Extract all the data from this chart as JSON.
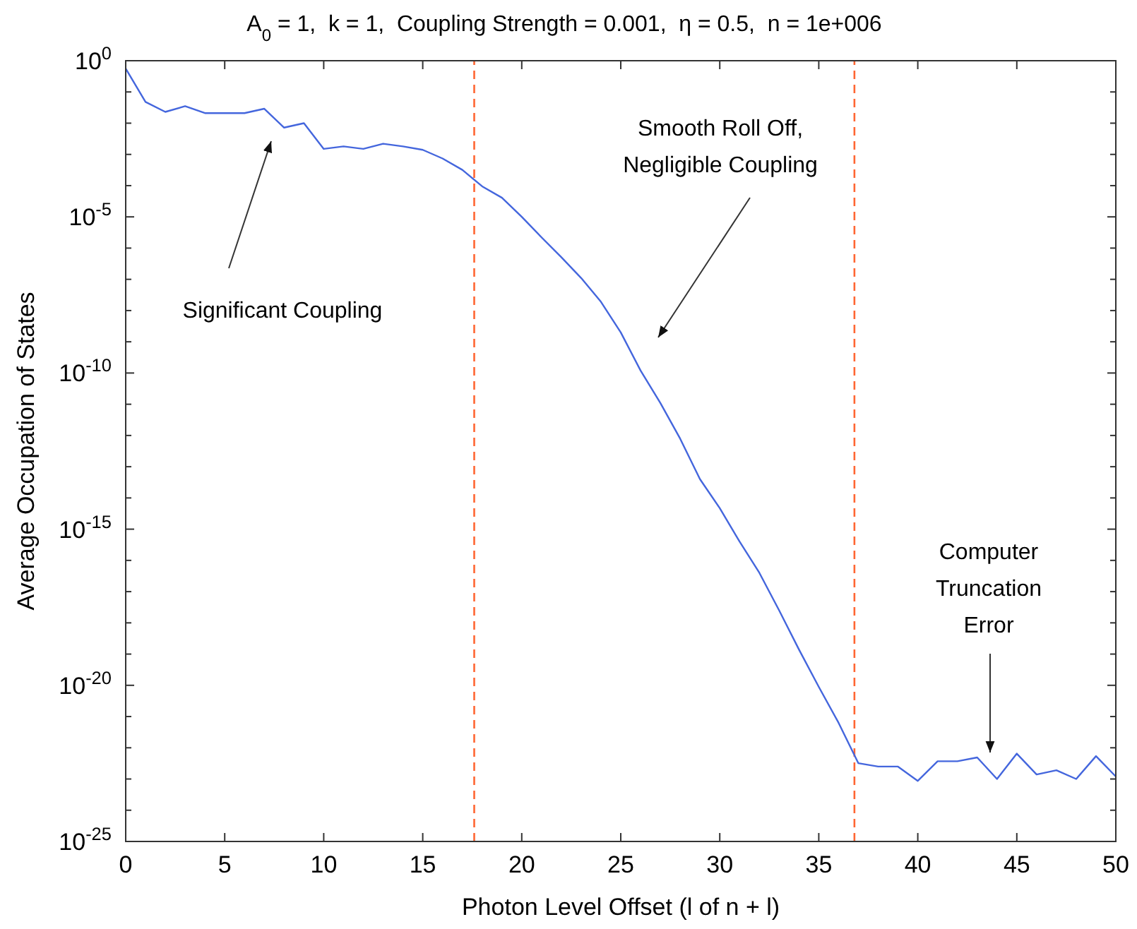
{
  "chart_data": {
    "type": "line",
    "title": "A$_{0}$ = 1,  k = 1,  Coupling Strength = 0.001,  η = 0.5,  n = 1e+006",
    "xlabel": "Photon Level Offset (l of n + l)",
    "ylabel": "Average Occupation of States",
    "x": [
      0,
      1,
      2,
      3,
      4,
      5,
      6,
      7,
      8,
      9,
      10,
      11,
      12,
      13,
      14,
      15,
      16,
      17,
      18,
      19,
      20,
      21,
      22,
      23,
      24,
      25,
      26,
      27,
      28,
      29,
      30,
      31,
      32,
      33,
      34,
      35,
      36,
      37,
      38,
      39,
      40,
      41,
      42,
      43,
      44,
      45,
      46,
      47,
      48,
      49,
      50
    ],
    "series": [
      {
        "color": "#4466dd",
        "values": [
          0.56,
          0.048,
          0.023,
          0.035,
          0.021,
          0.021,
          0.021,
          0.029,
          0.0072,
          0.01,
          0.0015,
          0.0018,
          0.0015,
          0.0022,
          0.0018,
          0.0014,
          0.00074,
          0.00032,
          9.5e-05,
          4.1e-05,
          1e-05,
          2.2e-06,
          5.1e-07,
          1.1e-07,
          1.9e-08,
          2e-09,
          1.2e-10,
          1.1e-11,
          7.9e-13,
          4e-14,
          4.7e-15,
          4e-16,
          4e-17,
          2.5e-18,
          1.4e-19,
          8.9e-21,
          6.3e-22,
          3.2e-23,
          2.5e-23,
          2.5e-23,
          8.7e-24,
          3.7e-23,
          3.7e-23,
          4.9e-23,
          1e-23,
          6.5e-23,
          1.4e-23,
          1.9e-23,
          1e-23,
          5.4e-23,
          1.2e-23
        ]
      }
    ],
    "log": true,
    "grid": false,
    "marker": "none",
    "line_style": "solid",
    "xlim": [
      0,
      50
    ],
    "xticks": [
      0,
      5,
      10,
      15,
      20,
      25,
      30,
      35,
      40,
      45,
      50
    ],
    "ylim": [
      1e-25,
      1
    ],
    "yticks": [
      {
        "value": 1,
        "label": "10$^{0}$"
      },
      {
        "value": 0.1,
        "label": null
      },
      {
        "value": 0.01,
        "label": null
      },
      {
        "value": 0.001,
        "label": null
      },
      {
        "value": 0.0001,
        "label": null
      },
      {
        "value": 1e-05,
        "label": "10$^{-5}$"
      },
      {
        "value": 1e-06,
        "label": null
      },
      {
        "value": 1e-07,
        "label": null
      },
      {
        "value": 1e-08,
        "label": null
      },
      {
        "value": 1e-09,
        "label": null
      },
      {
        "value": 1e-10,
        "label": "10$^{-10}$"
      },
      {
        "value": 1e-11,
        "label": null
      },
      {
        "value": 1e-12,
        "label": null
      },
      {
        "value": 1e-13,
        "label": null
      },
      {
        "value": 1e-14,
        "label": null
      },
      {
        "value": 1e-15,
        "label": "10$^{-15}$"
      },
      {
        "value": 1e-16,
        "label": null
      },
      {
        "value": 1e-17,
        "label": null
      },
      {
        "value": 1e-18,
        "label": null
      },
      {
        "value": 1e-19,
        "label": null
      },
      {
        "value": 1e-20,
        "label": "10$^{-20}$"
      },
      {
        "value": 1e-21,
        "label": null
      },
      {
        "value": 1e-22,
        "label": null
      },
      {
        "value": 1e-23,
        "label": null
      },
      {
        "value": 1e-24,
        "label": null
      },
      {
        "value": 1e-25,
        "label": "10$^{-25}$"
      }
    ],
    "ref_lines": [
      {
        "axis": "x",
        "value": 17.6,
        "color": "#ff6633",
        "line_style": "dashed"
      },
      {
        "axis": "x",
        "value": 36.8,
        "color": "#ff6633",
        "line_style": "dashed"
      }
    ],
    "annotations": [
      "Significant Coupling",
      "Smooth Roll Off,\nNegligible Coupling",
      "Computer\nTruncation\nError"
    ]
  }
}
